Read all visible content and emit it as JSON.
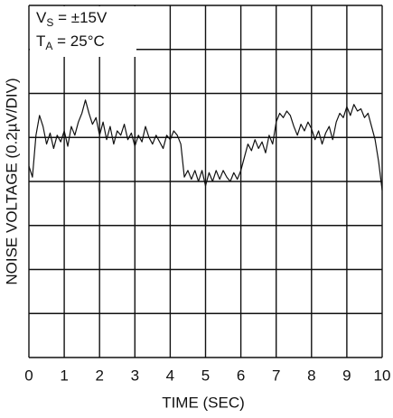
{
  "chart_data": {
    "type": "line",
    "x_label": "TIME (SEC)",
    "y_label": "NOISE VOLTAGE (0.2µV/DIV)",
    "annotations": [
      {
        "main": "V",
        "sub": "S",
        "rest": " = ±15V"
      },
      {
        "main": "T",
        "sub": "A",
        "rest": " = 25°C"
      }
    ],
    "xlim": [
      0,
      10
    ],
    "xticks": [
      0,
      1,
      2,
      3,
      4,
      5,
      6,
      7,
      8,
      9,
      10
    ],
    "ylim": [
      0,
      1.6
    ],
    "yticks": [
      0,
      0.2,
      0.4,
      0.6,
      0.8,
      1.0,
      1.2,
      1.4,
      1.6
    ],
    "grid": true,
    "x": [
      0,
      0.1,
      0.2,
      0.3,
      0.4,
      0.5,
      0.6,
      0.7,
      0.8,
      0.9,
      1,
      1.1,
      1.2,
      1.3,
      1.4,
      1.5,
      1.6,
      1.7,
      1.8,
      1.9,
      2,
      2.1,
      2.2,
      2.3,
      2.4,
      2.5,
      2.6,
      2.7,
      2.8,
      2.9,
      3,
      3.1,
      3.2,
      3.3,
      3.4,
      3.5,
      3.6,
      3.7,
      3.8,
      3.9,
      4,
      4.1,
      4.2,
      4.3,
      4.4,
      4.5,
      4.6,
      4.7,
      4.8,
      4.9,
      5,
      5.1,
      5.2,
      5.3,
      5.4,
      5.5,
      5.6,
      5.7,
      5.8,
      5.9,
      6,
      6.1,
      6.2,
      6.3,
      6.4,
      6.5,
      6.6,
      6.7,
      6.8,
      6.9,
      7,
      7.1,
      7.2,
      7.3,
      7.4,
      7.5,
      7.6,
      7.7,
      7.8,
      7.9,
      8,
      8.1,
      8.2,
      8.3,
      8.4,
      8.5,
      8.6,
      8.7,
      8.8,
      8.9,
      9,
      9.1,
      9.2,
      9.3,
      9.4,
      9.5,
      9.6,
      9.7,
      9.8,
      9.9,
      10
    ],
    "series": [
      {
        "color": "#111111",
        "values": [
          0.87,
          0.82,
          1.01,
          1.1,
          1.05,
          0.97,
          1.02,
          0.95,
          1.01,
          0.98,
          1.03,
          0.96,
          1.05,
          1.01,
          1.07,
          1.11,
          1.17,
          1.11,
          1.06,
          1.09,
          1.01,
          1.07,
          0.99,
          1.05,
          0.97,
          1.03,
          1.01,
          1.06,
          0.99,
          1.02,
          0.96,
          1.01,
          0.98,
          1.05,
          1.0,
          0.97,
          1.01,
          0.98,
          0.95,
          1.01,
          0.99,
          1.03,
          1.01,
          0.97,
          0.82,
          0.85,
          0.81,
          0.85,
          0.8,
          0.85,
          0.78,
          0.84,
          0.8,
          0.85,
          0.81,
          0.85,
          0.82,
          0.8,
          0.84,
          0.81,
          0.85,
          0.91,
          0.97,
          0.94,
          0.99,
          0.95,
          0.98,
          0.93,
          1.01,
          0.97,
          1.07,
          1.11,
          1.09,
          1.12,
          1.1,
          1.05,
          1.01,
          1.06,
          1.03,
          1.07,
          1.04,
          0.99,
          1.03,
          0.97,
          1.02,
          1.05,
          0.99,
          1.07,
          1.11,
          1.09,
          1.14,
          1.1,
          1.15,
          1.12,
          1.13,
          1.09,
          1.11,
          1.05,
          0.99,
          0.89,
          0.76
        ]
      }
    ]
  }
}
